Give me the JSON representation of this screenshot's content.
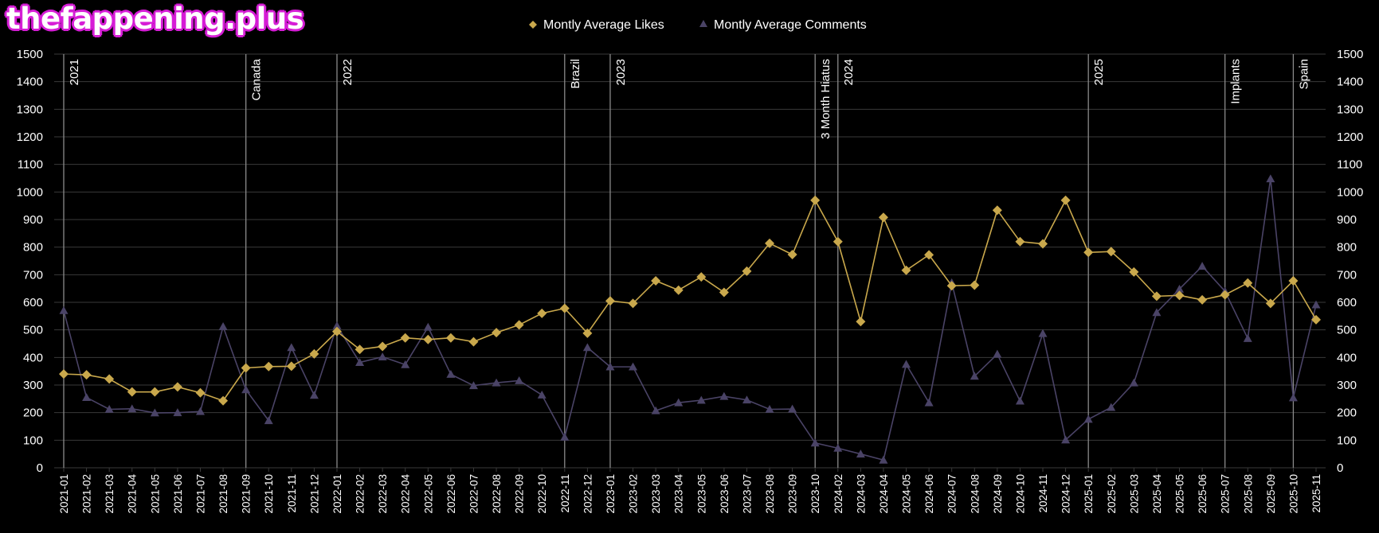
{
  "watermark": "thefappening.plus",
  "colors": {
    "background": "#000000",
    "likes": "#c9a84c",
    "comments": "#4a4366",
    "grid": "#3a3a3a",
    "annotation_line": "#8a8a8a",
    "text": "#ffffff"
  },
  "chart_data": {
    "type": "line",
    "categories": [
      "2021-01",
      "2021-02",
      "2021-03",
      "2021-04",
      "2021-05",
      "2021-06",
      "2021-07",
      "2021-08",
      "2021-09",
      "2021-10",
      "2021-11",
      "2021-12",
      "2022-01",
      "2022-02",
      "2022-03",
      "2022-04",
      "2022-05",
      "2022-06",
      "2022-07",
      "2022-08",
      "2022-09",
      "2022-10",
      "2022-11",
      "2022-12",
      "2023-01",
      "2023-02",
      "2023-03",
      "2023-04",
      "2023-05",
      "2023-06",
      "2023-07",
      "2023-08",
      "2023-09",
      "2023-10",
      "2024-02",
      "2024-03",
      "2024-04",
      "2024-05",
      "2024-06",
      "2024-07",
      "2024-08",
      "2024-09",
      "2024-10",
      "2024-11",
      "2024-12",
      "2025-01",
      "2025-02",
      "2025-03",
      "2025-04",
      "2025-05",
      "2025-06",
      "2025-07",
      "2025-08",
      "2025-09",
      "2025-10",
      "2025-11"
    ],
    "series": [
      {
        "name": "Montly Average Likes",
        "marker": "diamond",
        "values": [
          340,
          337,
          322,
          275,
          275,
          293,
          272,
          243,
          362,
          367,
          368,
          413,
          494,
          429,
          440,
          471,
          465,
          471,
          457,
          490,
          518,
          560,
          578,
          488,
          605,
          596,
          678,
          644,
          692,
          636,
          713,
          814,
          773,
          970,
          820,
          530,
          908,
          716,
          772,
          660,
          662,
          934,
          820,
          812,
          970,
          781,
          784,
          710,
          622,
          625,
          609,
          627,
          670,
          596,
          678,
          537
        ]
      },
      {
        "name": "Montly Average Comments",
        "marker": "triangle",
        "values": [
          570,
          255,
          212,
          214,
          199,
          200,
          204,
          512,
          283,
          171,
          436,
          263,
          515,
          382,
          402,
          374,
          510,
          339,
          298,
          308,
          316,
          264,
          111,
          436,
          366,
          366,
          207,
          236,
          245,
          259,
          246,
          212,
          213,
          90,
          71,
          50,
          28,
          375,
          236,
          671,
          332,
          412,
          242,
          487,
          101,
          176,
          219,
          308,
          563,
          648,
          731,
          640,
          469,
          1048,
          254,
          591
        ]
      }
    ],
    "annotations": [
      {
        "label": "2021",
        "at": "2021-01",
        "side": "right"
      },
      {
        "label": "Canada",
        "at": "2021-09",
        "side": "right"
      },
      {
        "label": "2022",
        "at": "2022-01",
        "side": "right"
      },
      {
        "label": "Brazil",
        "at": "2022-11",
        "side": "right"
      },
      {
        "label": "2023",
        "at": "2023-01",
        "side": "right"
      },
      {
        "label": "3 Month Hiatus",
        "at": "2023-10",
        "side": "right"
      },
      {
        "label": "2024",
        "at": "2024-02",
        "side": "right"
      },
      {
        "label": "2025",
        "at": "2025-01",
        "side": "right"
      },
      {
        "label": "Implants",
        "at": "2025-07",
        "side": "right"
      },
      {
        "label": "Spain",
        "at": "2025-10",
        "side": "right"
      }
    ],
    "yTicks": [
      "0",
      "100",
      "200",
      "300",
      "400",
      "500",
      "600",
      "700",
      "800",
      "900",
      "1000",
      "1100",
      "1200",
      "1300",
      "1400",
      "1500"
    ],
    "ylim": [
      0,
      1500
    ],
    "grid": true,
    "legend_position": "top-center",
    "title": "",
    "xlabel": "",
    "ylabel": ""
  }
}
